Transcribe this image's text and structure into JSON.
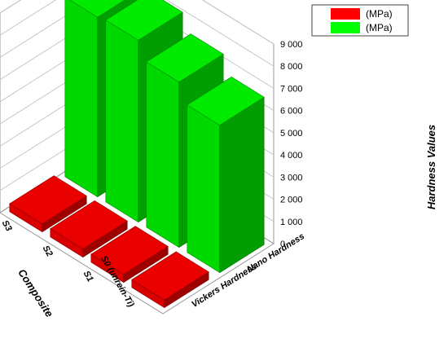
{
  "chart_data": {
    "type": "bar",
    "subtype": "3d-grouped",
    "categories": [
      "S0 (unrein-Ti)",
      "S1",
      "S2",
      "S3"
    ],
    "depth_categories": [
      "Vickers Hardness",
      "Nano Hardness"
    ],
    "series": [
      {
        "name": "(MPa)",
        "color": "#ff0000",
        "values": [
          350,
          360,
          370,
          360
        ]
      },
      {
        "name": "(MPa)",
        "color": "#00ff00",
        "values": [
          6650,
          7450,
          8200,
          8100
        ]
      }
    ],
    "zlabel": "Hardness Values",
    "ylabel": "Composite",
    "zlim": [
      0,
      9000
    ],
    "zticks": [
      "0",
      "1 000",
      "2 000",
      "3 000",
      "4 000",
      "5 000",
      "6 000",
      "7 000",
      "8 000",
      "9 000"
    ],
    "legend_position": "top-right",
    "grid": true
  }
}
